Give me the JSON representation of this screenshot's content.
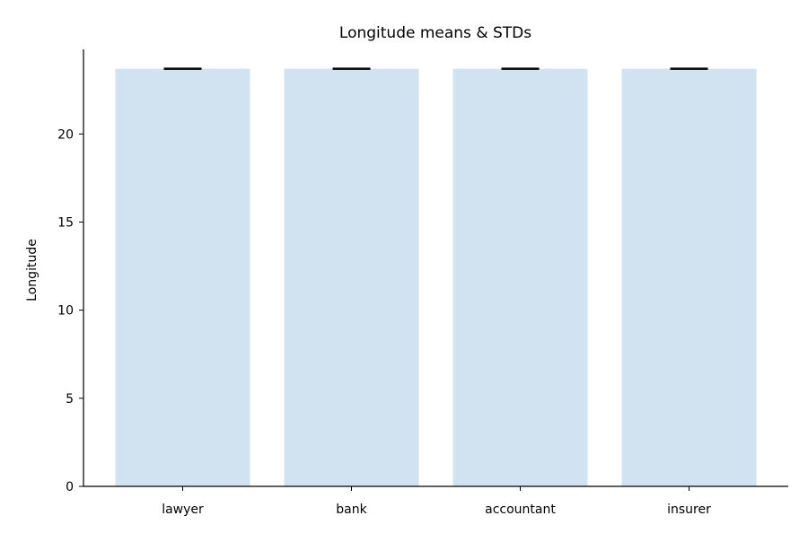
{
  "chart_data": {
    "type": "bar",
    "title": "Longitude means & STDs",
    "xlabel": "",
    "ylabel": "Longitude",
    "categories": [
      "lawyer",
      "bank",
      "accountant",
      "insurer"
    ],
    "values": [
      23.7,
      23.7,
      23.7,
      23.7
    ],
    "errors": [
      0.05,
      0.05,
      0.05,
      0.05
    ],
    "ylim": [
      0,
      24.8
    ],
    "yticks": [
      0,
      5,
      10,
      15,
      20
    ],
    "grid": false,
    "legend": "none",
    "colors": {
      "bar": "#d1e3f0",
      "error_bar": "#000000",
      "axis": "#000000"
    }
  }
}
